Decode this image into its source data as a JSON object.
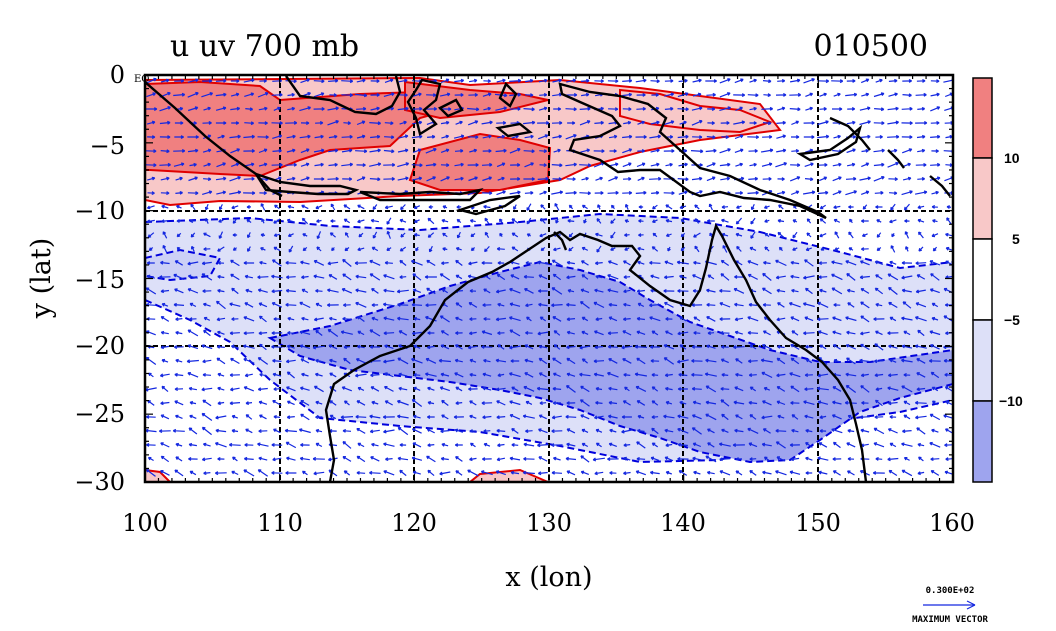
{
  "header": {
    "title": "u uv 700 mb",
    "date_code": "010500"
  },
  "axes": {
    "xlabel": "x (lon)",
    "ylabel": "y (lat)",
    "x_ticks": [
      "100",
      "110",
      "120",
      "130",
      "140",
      "150",
      "160"
    ],
    "y_ticks": [
      "0",
      "−5",
      "−10",
      "−15",
      "−20",
      "−25",
      "−30"
    ],
    "corner_label": "EQ",
    "xlim": [
      100,
      160
    ],
    "ylim": [
      -30,
      0
    ]
  },
  "colorbar": {
    "labels": [
      "10",
      "5",
      "−5",
      "−10"
    ],
    "levels": [
      10,
      5,
      -5,
      -10
    ],
    "colors": [
      "#f08080",
      "#f8c8c8",
      "#ffffff",
      "#dde0f8",
      "#9ea4ee"
    ]
  },
  "vector_key": {
    "magnitude": "0.300E+02",
    "caption": "MAXIMUM VECTOR"
  },
  "colors": {
    "land": "#000000",
    "positive_contour": "#e00000",
    "negative_contour": "#0000dd",
    "grid": "#000000"
  }
}
